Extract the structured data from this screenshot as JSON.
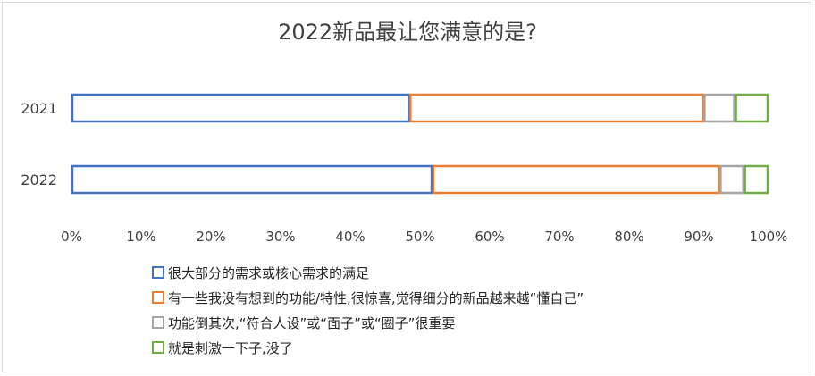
{
  "chart_data": {
    "type": "bar",
    "orientation": "horizontal",
    "stacked": true,
    "percent_stacked": true,
    "title": "2022新品最让您满意的是?",
    "categories": [
      "2021",
      "2022"
    ],
    "series": [
      {
        "name": "很大部分的需求或核心需求的满足",
        "color": "#4472c4",
        "values": [
          48.5,
          51.8
        ]
      },
      {
        "name": "有一些我没有想到的功能/特性,很惊喜,觉得细分的新品越来越“懂自己”",
        "color": "#ed7d31",
        "values": [
          42.2,
          41.2
        ]
      },
      {
        "name": "功能倒其次,“符合人设”或“面子”或“圈子”很重要",
        "color": "#a5a5a5",
        "values": [
          4.5,
          3.5
        ]
      },
      {
        "name": "就是刺激一下子,没了",
        "color": "#70ad47",
        "values": [
          4.8,
          3.5
        ]
      }
    ],
    "xlim": [
      0,
      100
    ],
    "xticks": [
      "0%",
      "10%",
      "20%",
      "30%",
      "40%",
      "50%",
      "60%",
      "70%",
      "80%",
      "90%",
      "100%"
    ],
    "grid": false,
    "legend_position": "bottom"
  }
}
